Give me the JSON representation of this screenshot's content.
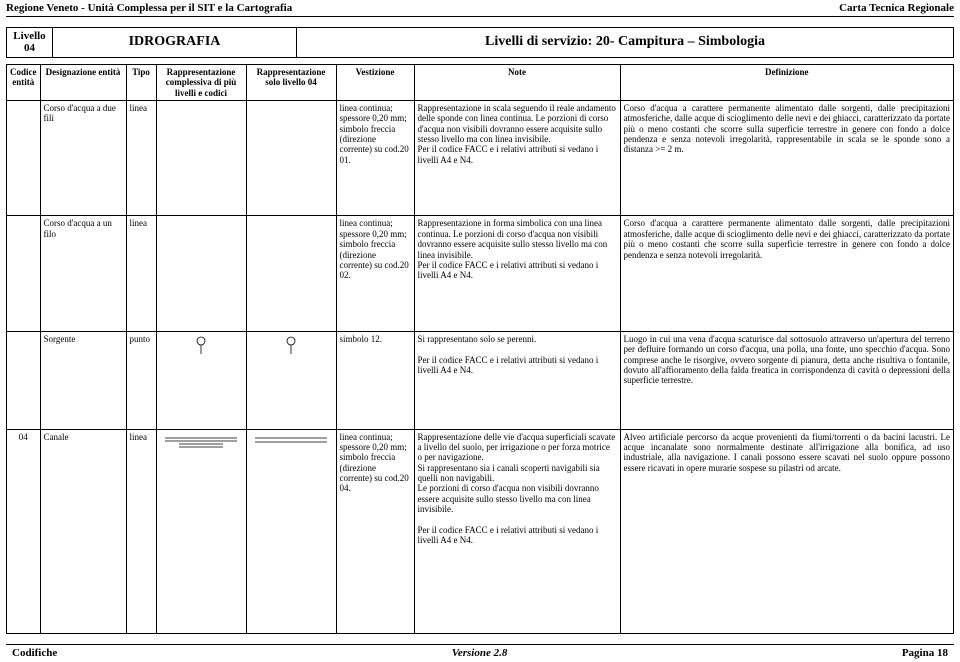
{
  "header": {
    "left": "Regione Veneto - Unità Complessa per il SIT e la Cartografia",
    "right": "Carta Tecnica Regionale"
  },
  "level_box": {
    "label_top": "Livello",
    "label_num": "04",
    "mid": "IDROGRAFIA",
    "right": "Livelli di servizio: 20- Campitura – Simbologia"
  },
  "columns": {
    "c1": "Codice entità",
    "c2": "Designazione entità",
    "c3": "Tipo",
    "c4": "Rappresentazione complessiva di più livelli e codici",
    "c5": "Rappresentazione solo livello 04",
    "c6": "Vestizione",
    "c7": "Note",
    "c8": "Definizione"
  },
  "rows": [
    {
      "codice": "",
      "desig": "Corso d'acqua a due fili",
      "tipo": "linea",
      "vest": "linea continua; spessore 0,20 mm; simbolo freccia (direzione corrente) su cod.20 01.",
      "note": "Rappresentazione in scala seguendo il reale andamento delle sponde con linea continua. Le porzioni di corso d'acqua non visibili dovranno essere acquisite sullo stesso livello ma con linea invisibile.\nPer il codice FACC e i relativi attributi si vedano i livelli A4 e N4.",
      "def": "Corso d'acqua a carattere permanente alimentato dalle sorgenti, dalle precipitazioni atmosferiche, dalle acque di scioglimento delle nevi e dei ghiacci, caratterizzato da portate più o meno costanti che scorre sulla superficie terrestre in genere con fondo a dolce pendenza e senza notevoli irregolarità, rappresentabile in scala se le sponde sono a distanza >= 2 m."
    },
    {
      "codice": "",
      "desig": "Corso d'acqua a un filo",
      "tipo": "linea",
      "vest": "linea continua; spessore 0,20 mm; simbolo freccia (direzione corrente) su cod.20 02.",
      "note": "Rappresentazione in forma simbolica con una linea continua. Le porzioni di corso d'acqua non visibili dovranno essere acquisite sullo stesso livello ma con linea invisibile.\nPer il codice FACC e i relativi attributi si vedano i livelli A4 e N4.",
      "def": "Corso d'acqua a carattere permanente alimentato dalle sorgenti, dalle precipitazioni atmosferiche, dalle acque di scioglimento delle nevi e dei ghiacci, caratterizzato da portate più o meno costanti che scorre sulla superficie terrestre in genere con fondo a dolce pendenza e senza notevoli irregolarità."
    },
    {
      "codice": "",
      "desig": "Sorgente",
      "tipo": "punto",
      "vest": "simbolo 12.",
      "note": "Si rappresentano solo se perenni.\n\nPer il codice FACC e i relativi attributi si vedano i livelli A4 e N4.",
      "def": "Luogo in cui una vena d'acqua scaturisce dal sottosuolo attraverso un'apertura del terreno per defluire formando un corso d'acqua, una polla, una fonte, uno specchio d'acqua. Sono comprese anche le risorgive, ovvero sorgente di pianura, detta anche risultiva o fontanile, dovuto all'affioramento della falda freatica in corrispondenza di cavità o depressioni della superficie terrestre."
    },
    {
      "codice": "04",
      "desig": "Canale",
      "tipo": "linea",
      "vest": "linea continua; spessore 0,20 mm; simbolo freccia (direzione corrente) su cod.20 04.",
      "note": "Rappresentazione delle vie d'acqua superficiali scavate a livello del suolo, per irrigazione o per forza motrice o per navigazione.\nSi rappresentano sia i canali scoperti navigabili sia quelli non navigabili.\nLe porzioni di corso d'acqua non visibili dovranno essere acquisite sullo stesso livello ma con linea invisibile.\n\nPer il codice FACC e i relativi attributi si vedano i livelli A4 e N4.",
      "def": "Alveo artificiale percorso da acque provenienti da fiumi/torrenti o da bacini lacustri. Le acque incanalate sono normalmente destinate all'irrigazione alla bonifica, ad uso industriale, alla navigazione. I canali possono essere scavati nel suolo oppure possono essere ricavati in opere murarie sospese su pilastri od arcate."
    }
  ],
  "symbols": {
    "droplet_stroke": "#000",
    "line_stroke": "#000"
  },
  "footer": {
    "left": "Codifiche",
    "mid": "Versione 2.8",
    "right": "Pagina 18"
  }
}
